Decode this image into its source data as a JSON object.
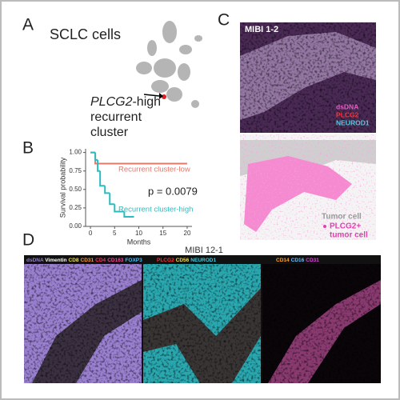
{
  "panel_labels": [
    "A",
    "B",
    "C",
    "D"
  ],
  "panel_a": {
    "title": "SCLC cells",
    "annotation": [
      "PLCG2",
      "-high",
      "recurrent",
      "cluster"
    ]
  },
  "chart_data": {
    "type": "step",
    "y_label": "Survival probability",
    "x_label": "Months",
    "annotation": "p = 0.0079",
    "xlim": [
      -1,
      21
    ],
    "xticks": [
      0,
      5,
      10,
      15,
      20
    ],
    "ylim": [
      0,
      1.05
    ],
    "yticks": [
      {
        "value": 0,
        "label": "0.00"
      },
      {
        "value": 0.25,
        "label": "0.25"
      },
      {
        "value": 0.5,
        "label": "0.50"
      },
      {
        "value": 0.75,
        "label": "0.75"
      },
      {
        "value": 1,
        "label": "1.00"
      }
    ],
    "series": [
      {
        "name": "Recurrent cluster-low",
        "color": "#e8776a",
        "x": [
          0,
          1,
          20
        ],
        "values": [
          1,
          0.85,
          0.85
        ]
      },
      {
        "name": "Recurrent cluster-high",
        "color": "#2bbcc0",
        "x": [
          0,
          1,
          1.5,
          2,
          3,
          4,
          5,
          7,
          9
        ],
        "values": [
          1,
          0.9,
          0.75,
          0.55,
          0.45,
          0.3,
          0.2,
          0.13,
          0.13
        ]
      }
    ]
  },
  "panel_c": {
    "title": "MIBI 1-2",
    "channels": [
      "dsDNA",
      "PLCG2",
      "NEUROD1"
    ],
    "channel_colors": [
      "#e060c0",
      "#ff3030",
      "#40d0e0"
    ],
    "legend": [
      "Tumor cell",
      "PLCG2+",
      "tumor cell"
    ]
  },
  "panel_d": {
    "title": "MIBI 12-1",
    "images": [
      {
        "channels": [
          "dsDNA",
          "Vimentin",
          "CD8",
          "CD31",
          "CD4",
          "CD163",
          "FOXP3"
        ],
        "colors": [
          "#9a7fd0",
          "#ffffff",
          "#f0e040",
          "#ff9a30",
          "#ff3060",
          "#ff40a0",
          "#40c0ff"
        ]
      },
      {
        "channels": [
          "PLCG2",
          "CD56",
          "NEUROD1"
        ],
        "colors": [
          "#ff3030",
          "#f0e040",
          "#40d0e0"
        ]
      },
      {
        "channels": [
          "CD14",
          "CD16",
          "CD31"
        ],
        "colors": [
          "#ffa030",
          "#60c0ff",
          "#e040e0"
        ]
      }
    ]
  }
}
